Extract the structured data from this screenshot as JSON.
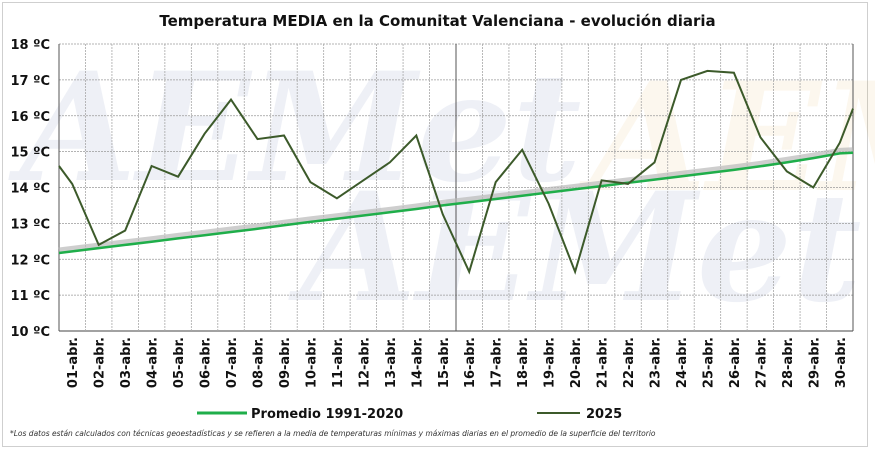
{
  "chart_data": {
    "type": "line",
    "title": "Temperatura MEDIA en la Comunitat Valenciana - evolución diaria",
    "categories": [
      "01-abr.",
      "02-abr.",
      "03-abr.",
      "04-abr.",
      "05-abr.",
      "06-abr.",
      "07-abr.",
      "08-abr.",
      "09-abr.",
      "10-abr.",
      "11-abr.",
      "12-abr.",
      "13-abr.",
      "14-abr.",
      "15-abr.",
      "16-abr.",
      "17-abr.",
      "18-abr.",
      "19-abr.",
      "20-abr.",
      "21-abr.",
      "22-abr.",
      "23-abr.",
      "24-abr.",
      "25-abr.",
      "26-abr.",
      "27-abr.",
      "28-abr.",
      "29-abr.",
      "30-abr."
    ],
    "x_start_value": 14.6,
    "y_ticks": [
      "10 ºC",
      "11 ºC",
      "12 ºC",
      "13 ºC",
      "14 ºC",
      "15 ºC",
      "16 ºC",
      "17 ºC",
      "18 ºC"
    ],
    "ylim": [
      10,
      18
    ],
    "grid": true,
    "legend_position": "bottom",
    "series": [
      {
        "name": "Promedio 1991-2020",
        "color": "#1fae4a",
        "values": [
          12.22,
          12.31,
          12.4,
          12.49,
          12.58,
          12.67,
          12.76,
          12.85,
          12.95,
          13.04,
          13.13,
          13.22,
          13.31,
          13.4,
          13.5,
          13.59,
          13.68,
          13.77,
          13.86,
          13.95,
          14.04,
          14.13,
          14.22,
          14.31,
          14.4,
          14.49,
          14.59,
          14.7,
          14.82,
          14.95
        ]
      },
      {
        "name": "2025",
        "color": "#3c5a2a",
        "values": [
          14.1,
          12.4,
          12.8,
          14.6,
          14.3,
          15.5,
          16.45,
          15.35,
          15.45,
          14.15,
          13.7,
          14.2,
          14.7,
          15.45,
          13.25,
          11.65,
          14.15,
          15.05,
          13.55,
          11.65,
          14.2,
          14.1,
          14.7,
          17.0,
          17.25,
          17.2,
          15.4,
          14.45,
          14.0,
          15.25
        ]
      }
    ],
    "x_end_value": 16.2
  },
  "footnote": "*Los datos están calculados con técnicas geoestadísticas y se refieren a la media de temperaturas mínimas y máximas diarias en el promedio de la superficie del territorio",
  "watermark": "AEMet"
}
